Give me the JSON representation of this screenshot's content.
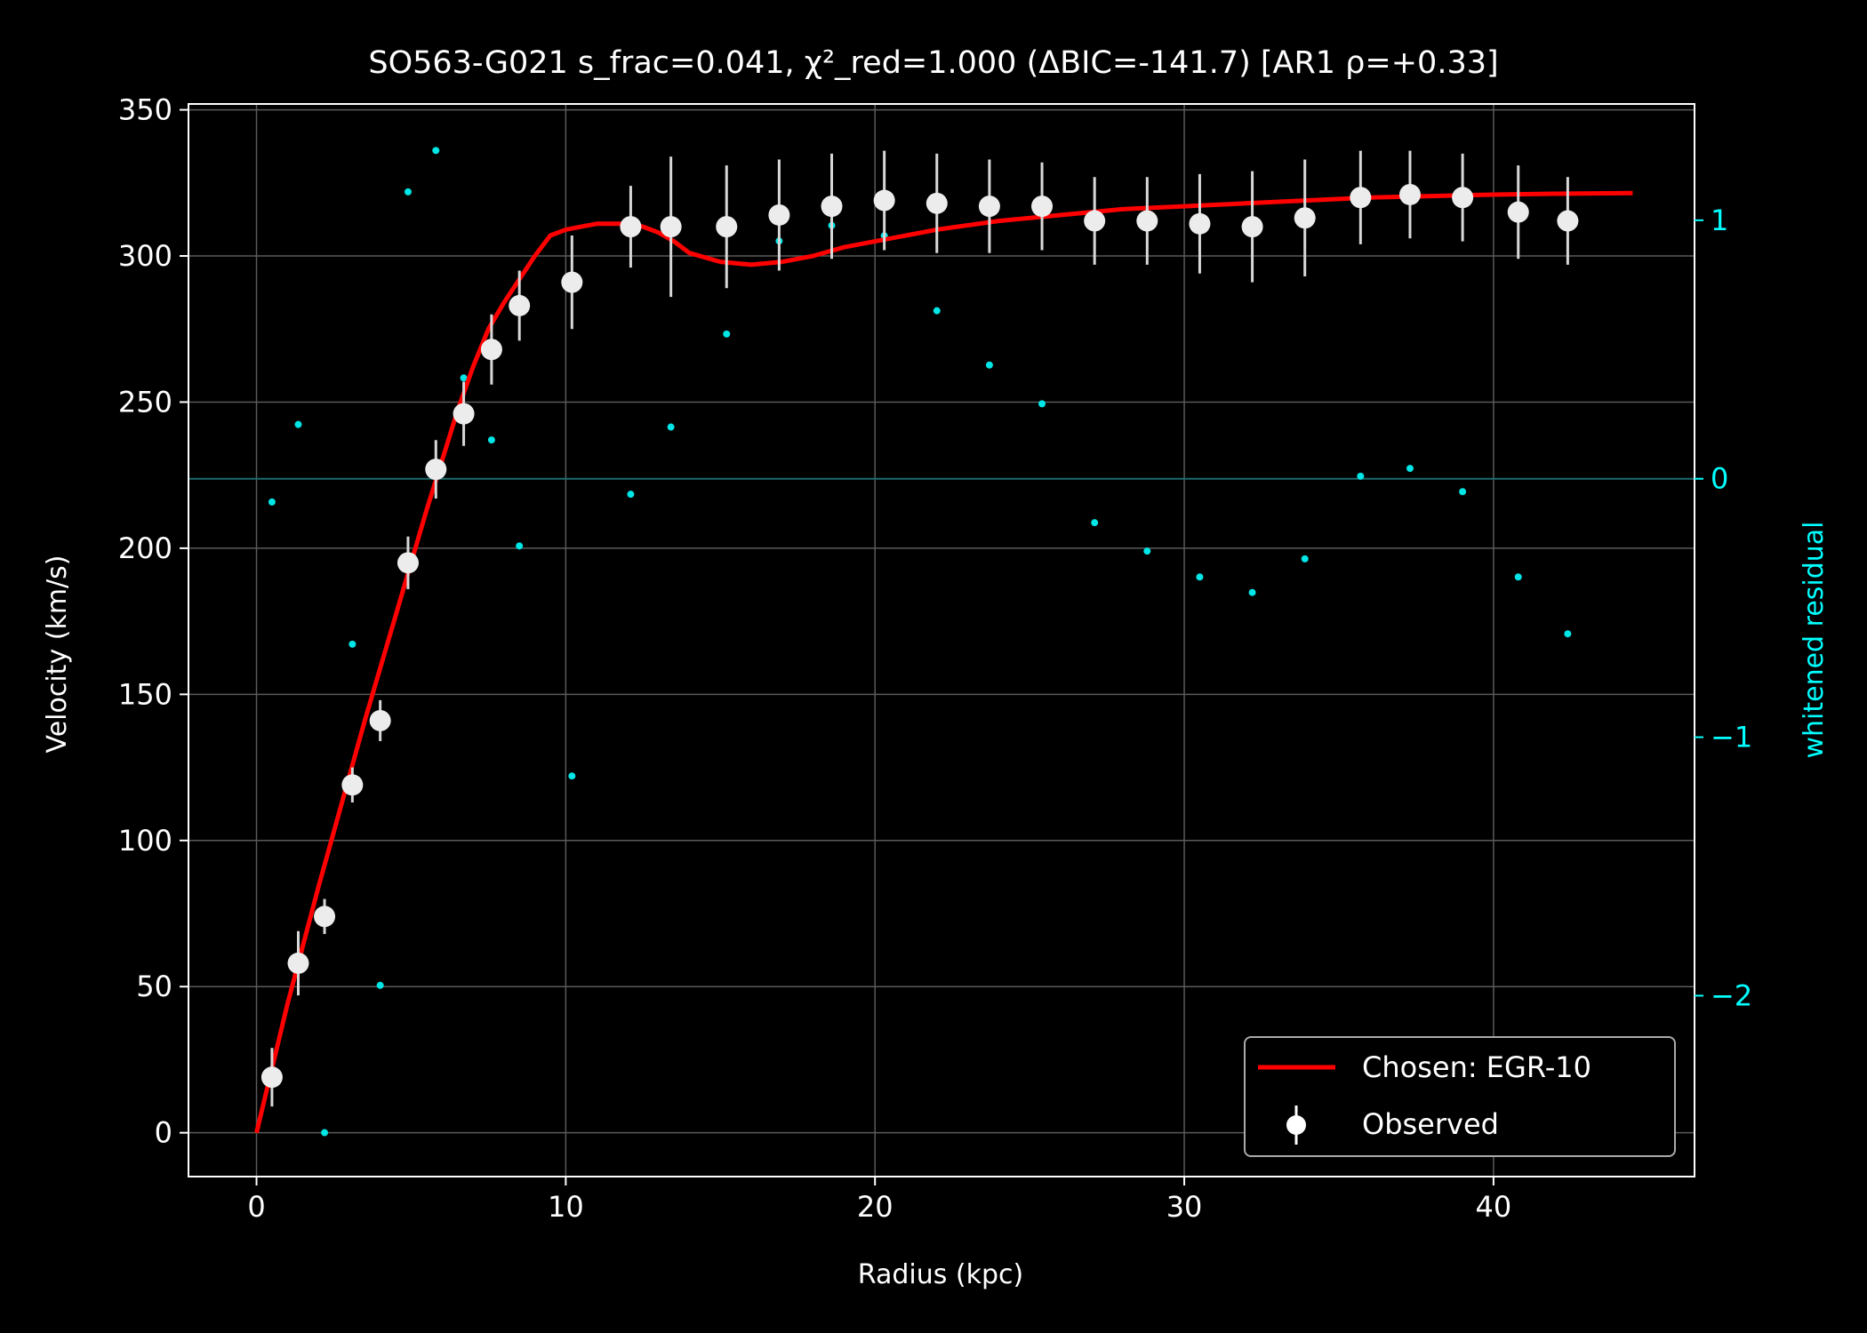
{
  "chart_data": {
    "type": "line",
    "title": "SO563-G021  s_frac=0.041, χ²_red=1.000  (ΔBIC=-141.7) [AR1 ρ=+0.33]",
    "xlabel": "Radius (kpc)",
    "ylabel": "Velocity (km/s)",
    "y2label": "whitened residual",
    "xlim": [
      -2.2,
      46.5
    ],
    "ylim": [
      -15,
      352
    ],
    "y2lim": [
      -2.7,
      1.45
    ],
    "xticks": [
      0,
      10,
      20,
      30,
      40
    ],
    "yticks": [
      0,
      50,
      100,
      150,
      200,
      250,
      300,
      350
    ],
    "y2ticks": [
      -2,
      -1,
      0,
      1
    ],
    "y2tick_labels": [
      "−2",
      "−1",
      "0",
      "1"
    ],
    "grid": true,
    "legend_position": "bottom-right",
    "colors": {
      "background": "#000000",
      "foreground": "#ffffff",
      "model": "#ff0000",
      "observed": "#ffffff",
      "residual": "#00e5e5",
      "secondary_axis": "#00ffff",
      "grid": "#5a5a5a"
    },
    "series": [
      {
        "name": "Chosen: EGR-10",
        "kind": "line",
        "x": [
          0,
          0.5,
          1,
          1.5,
          2,
          2.5,
          3,
          3.5,
          4,
          4.5,
          5,
          5.5,
          6,
          6.5,
          7,
          7.5,
          8,
          8.5,
          9,
          9.5,
          10,
          10.5,
          11,
          12,
          12.5,
          13,
          13.5,
          14,
          15,
          16,
          17,
          18,
          19,
          20,
          21,
          22,
          24,
          26,
          28,
          30,
          32,
          34,
          36,
          38,
          40,
          42,
          44.5
        ],
        "y": [
          0,
          22,
          44,
          64,
          84,
          103,
          122,
          141,
          159,
          177,
          195,
          213,
          230,
          247,
          262,
          275,
          284,
          292,
          300,
          307,
          309,
          310,
          311,
          311,
          310,
          308,
          305,
          301,
          298,
          297,
          298,
          300,
          303,
          305,
          307,
          309,
          312,
          314,
          316,
          317,
          318,
          319,
          320,
          320.5,
          321,
          321.3,
          321.5
        ]
      },
      {
        "name": "Observed",
        "kind": "errorbar",
        "x": [
          0.5,
          1.35,
          2.2,
          3.1,
          4.0,
          4.9,
          5.8,
          6.7,
          7.6,
          8.5,
          10.2,
          12.1,
          13.4,
          15.2,
          16.9,
          18.6,
          20.3,
          22.0,
          23.7,
          25.4,
          27.1,
          28.8,
          30.5,
          32.2,
          33.9,
          35.7,
          37.3,
          39.0,
          40.8,
          42.4
        ],
        "y": [
          19,
          58,
          74,
          119,
          141,
          195,
          227,
          246,
          268,
          283,
          291,
          310,
          310,
          310,
          314,
          317,
          319,
          318,
          317,
          317,
          312,
          312,
          311,
          310,
          313,
          320,
          321,
          320,
          315,
          312
        ],
        "err": [
          10,
          11,
          6,
          6,
          7,
          9,
          10,
          11,
          12,
          12,
          16,
          14,
          24,
          21,
          19,
          18,
          17,
          17,
          16,
          15,
          15,
          15,
          17,
          19,
          20,
          16,
          15,
          15,
          16,
          15
        ]
      },
      {
        "name": "whitened residual",
        "kind": "scatter",
        "axis": "right",
        "x": [
          0.5,
          1.35,
          2.2,
          3.1,
          4.0,
          4.9,
          5.8,
          6.7,
          7.6,
          8.5,
          10.2,
          12.1,
          13.4,
          15.2,
          16.9,
          18.6,
          20.3,
          22.0,
          23.7,
          25.4,
          27.1,
          28.8,
          30.5,
          32.2,
          33.9,
          35.7,
          37.3,
          39.0,
          40.8,
          42.4
        ],
        "y": [
          -0.09,
          0.21,
          -2.53,
          -0.64,
          -1.96,
          1.11,
          1.27,
          0.39,
          0.15,
          -0.26,
          -1.15,
          -0.06,
          0.2,
          0.56,
          0.92,
          0.98,
          0.94,
          0.65,
          0.44,
          0.29,
          -0.17,
          -0.28,
          -0.38,
          -0.44,
          -0.31,
          0.01,
          0.04,
          -0.05,
          -0.38,
          -0.6
        ]
      }
    ],
    "legend": [
      {
        "label": "Chosen: EGR-10",
        "kind": "line"
      },
      {
        "label": "Observed",
        "kind": "errorbar"
      }
    ]
  }
}
